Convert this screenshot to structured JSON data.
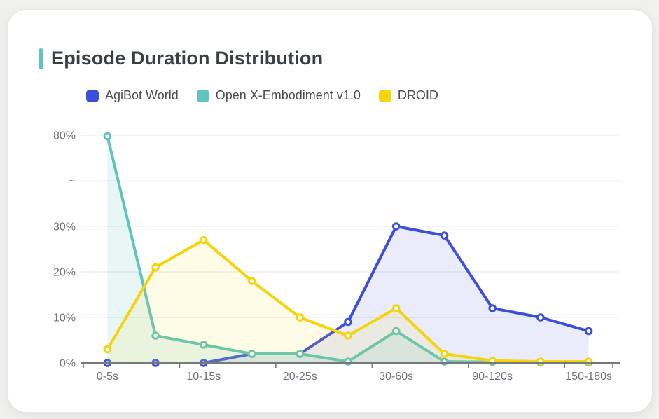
{
  "card": {
    "title": "Episode Duration Distribution"
  },
  "colors": {
    "page_bg": "#F0F0EE",
    "card_bg": "#FFFFFF",
    "title_text": "#3A3F45",
    "accent_bar": "#5FC4BC",
    "grid_line": "#EBEBF2",
    "axis_line": "#75797E",
    "axis_text": "#6E7379",
    "series_blue": "#3D4EDB",
    "series_teal": "#5FC4BC",
    "series_yellow": "#F5D40B"
  },
  "chart_data": {
    "type": "line",
    "title": "Episode Duration Distribution",
    "legend_position": "top",
    "grid": true,
    "area_fill": true,
    "marker": "hollow-circle",
    "categories": [
      "0-5s",
      "",
      "10-15s",
      "",
      "20-25s",
      "",
      "30-60s",
      "",
      "90-120s",
      "",
      "150-180s"
    ],
    "series": [
      {
        "name": "AgiBot World",
        "color": "#3D4EDB",
        "values": [
          0,
          0,
          0,
          2,
          2,
          9,
          30,
          28,
          12,
          10,
          7
        ]
      },
      {
        "name": "Open X-Embodiment v1.0",
        "color": "#5FC4BC",
        "values": [
          79.5,
          6,
          4,
          2,
          2,
          0.3,
          7,
          0.3,
          0.2,
          0.1,
          0.1
        ]
      },
      {
        "name": "DROID",
        "color": "#F5D40B",
        "values": [
          3,
          21,
          27,
          18,
          10,
          6,
          12,
          2,
          0.5,
          0.3,
          0.3
        ]
      }
    ],
    "y_axis": {
      "unit": "%",
      "tick_labels": [
        "0%",
        "10%",
        "20%",
        "30%",
        "~",
        "80%"
      ],
      "broken_axis": true,
      "break_between": [
        30,
        80
      ]
    }
  }
}
